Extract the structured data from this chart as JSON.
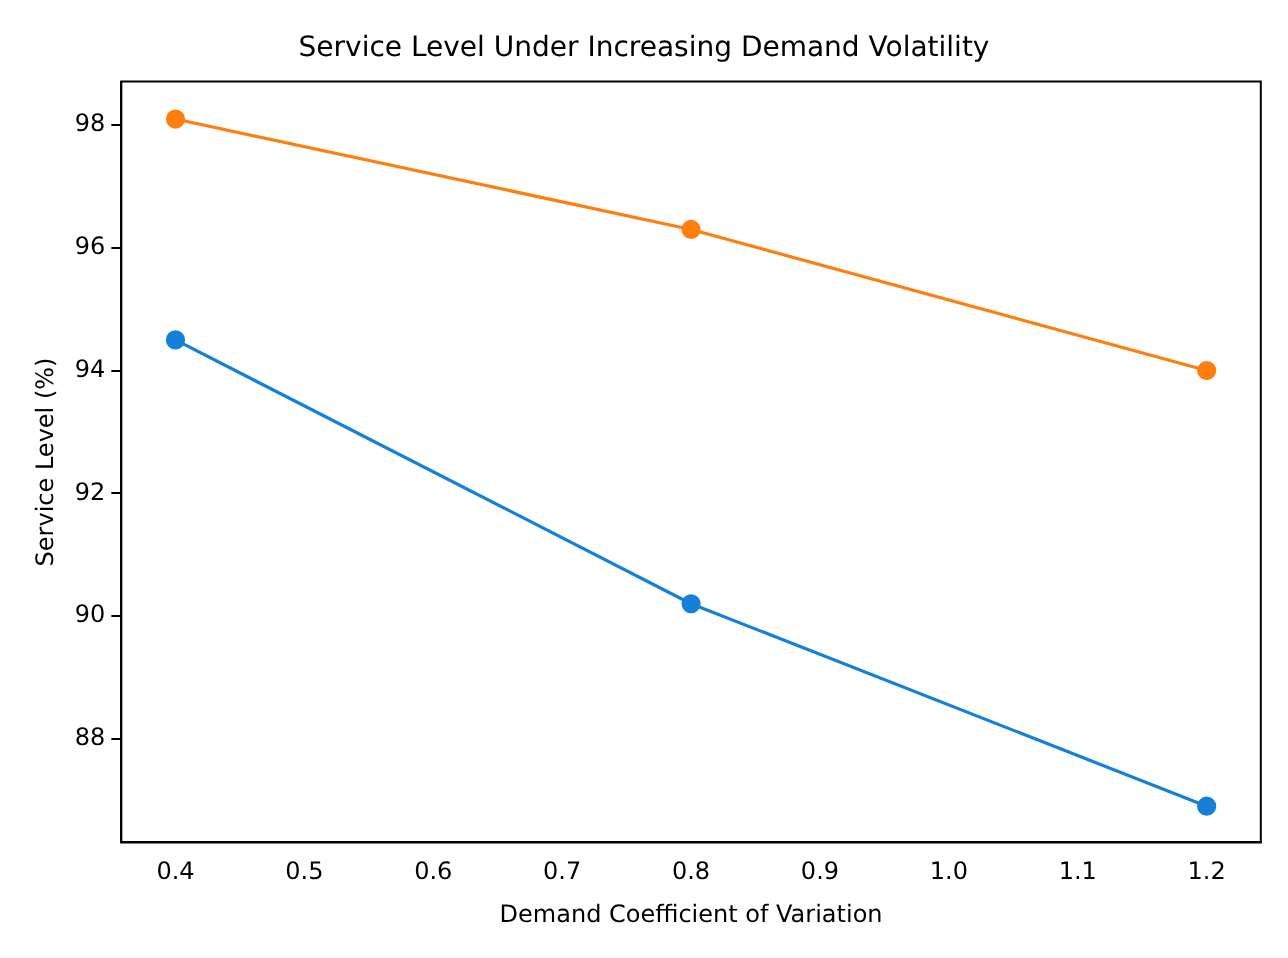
{
  "chart_data": {
    "type": "line",
    "title": "Service Level Under Increasing Demand Volatility",
    "xlabel": "Demand Coefficient of Variation",
    "ylabel": "Service Level (%)",
    "x": [
      0.4,
      0.8,
      1.2
    ],
    "series": [
      {
        "color": "#1580d8",
        "values": [
          94.5,
          90.2,
          86.9
        ]
      },
      {
        "color": "#ff7f0e",
        "values": [
          98.1,
          96.3,
          94.0
        ]
      }
    ],
    "xlim": [
      0.358,
      1.242
    ],
    "xticks": [
      {
        "value": 0.4,
        "label": "0.4"
      },
      {
        "value": 0.5,
        "label": "0.5"
      },
      {
        "value": 0.6,
        "label": "0.6"
      },
      {
        "value": 0.7,
        "label": "0.7"
      },
      {
        "value": 0.8,
        "label": "0.8"
      },
      {
        "value": 0.9,
        "label": "0.9"
      },
      {
        "value": 1.0,
        "label": "1.0"
      },
      {
        "value": 1.1,
        "label": "1.1"
      },
      {
        "value": 1.2,
        "label": "1.2"
      }
    ],
    "ylim": [
      86.31,
      98.71
    ],
    "yticks": [
      88,
      90,
      92,
      94,
      96,
      98
    ],
    "grid": false,
    "legend": false,
    "marker": "circle",
    "line_style": "solid"
  }
}
